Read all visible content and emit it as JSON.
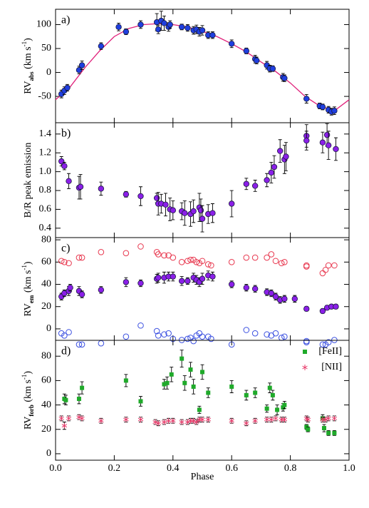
{
  "chart_data": [
    {
      "type": "scatter",
      "panel_label": "a)",
      "ylabel": [
        "RV",
        "abs",
        " (km s",
        "-1",
        ")"
      ],
      "xlim": [
        0,
        1
      ],
      "ylim": [
        -105,
        132
      ],
      "yticks": [
        -50,
        0,
        50,
        100
      ],
      "series": [
        {
          "marker": "line",
          "color": "#e0207a",
          "x": [
            0,
            0.05,
            0.1,
            0.15,
            0.2,
            0.25,
            0.3,
            0.35,
            0.4,
            0.45,
            0.5,
            0.55,
            0.6,
            0.65,
            0.7,
            0.75,
            0.8,
            0.85,
            0.9,
            0.95,
            1
          ],
          "values": [
            -57,
            -30,
            10,
            45,
            75,
            92,
            100,
            102,
            100,
            95,
            86,
            75,
            60,
            43,
            22,
            2,
            -22,
            -50,
            -70,
            -80,
            -57
          ]
        },
        {
          "marker": "filled-circle",
          "color": "#1f3fe0",
          "x": [
            0.02,
            0.03,
            0.04,
            0.08,
            0.09,
            0.155,
            0.215,
            0.24,
            0.29,
            0.345,
            0.35,
            0.36,
            0.37,
            0.385,
            0.39,
            0.43,
            0.45,
            0.47,
            0.48,
            0.49,
            0.5,
            0.52,
            0.535,
            0.6,
            0.65,
            0.68,
            0.685,
            0.72,
            0.73,
            0.74,
            0.775,
            0.78,
            0.855,
            0.9,
            0.91,
            0.93,
            0.94,
            0.95
          ],
          "values": [
            -45,
            -38,
            -32,
            5,
            15,
            55,
            95,
            85,
            100,
            105,
            90,
            108,
            103,
            95,
            100,
            95,
            93,
            88,
            90,
            85,
            88,
            78,
            78,
            60,
            45,
            28,
            25,
            15,
            8,
            8,
            -10,
            -12,
            -55,
            -70,
            -72,
            -78,
            -82,
            -80
          ],
          "errors": [
            8,
            8,
            7,
            8,
            9,
            7,
            8,
            6,
            8,
            18,
            9,
            20,
            15,
            9,
            8,
            6,
            7,
            8,
            9,
            9,
            10,
            7,
            7,
            8,
            6,
            8,
            7,
            8,
            7,
            6,
            8,
            7,
            9,
            6,
            6,
            7,
            7,
            8
          ]
        }
      ]
    },
    {
      "type": "scatter",
      "panel_label": "b)",
      "ylabel": "B/R peak emission",
      "xlim": [
        0,
        1
      ],
      "ylim": [
        0.3,
        1.52
      ],
      "yticks": [
        0.4,
        0.6,
        0.8,
        {
          "value": 1,
          "label": "1.0"
        },
        1.2,
        1.4
      ],
      "series": [
        {
          "marker": "filled-circle",
          "color": "#8b1fe8",
          "x": [
            0.02,
            0.03,
            0.045,
            0.08,
            0.085,
            0.155,
            0.24,
            0.29,
            0.345,
            0.35,
            0.36,
            0.375,
            0.39,
            0.4,
            0.43,
            0.44,
            0.46,
            0.47,
            0.49,
            0.495,
            0.5,
            0.52,
            0.535,
            0.6,
            0.65,
            0.68,
            0.72,
            0.735,
            0.745,
            0.765,
            0.78,
            0.785,
            0.855,
            0.855,
            0.91,
            0.925,
            0.93,
            0.955
          ],
          "values": [
            1.11,
            1.06,
            0.9,
            0.83,
            0.84,
            0.82,
            0.76,
            0.74,
            0.72,
            0.66,
            0.66,
            0.65,
            0.6,
            0.59,
            0.58,
            0.56,
            0.55,
            0.58,
            0.62,
            0.59,
            0.5,
            0.55,
            0.56,
            0.66,
            0.87,
            0.85,
            0.91,
            0.99,
            1.05,
            1.22,
            1.13,
            1.16,
            1.38,
            1.33,
            1.31,
            1.39,
            1.28,
            1.24
          ],
          "errors": [
            0.05,
            0.04,
            0.08,
            0.12,
            0.13,
            0.07,
            0.03,
            0.1,
            0.05,
            0.12,
            0.1,
            0.12,
            0.12,
            0.1,
            0.09,
            0.13,
            0.13,
            0.12,
            0.15,
            0.12,
            0.14,
            0.1,
            0.1,
            0.14,
            0.06,
            0.06,
            0.07,
            0.11,
            0.12,
            0.12,
            0.15,
            0.15,
            0.12,
            0.1,
            0.11,
            0.12,
            0.15,
            0.12
          ]
        }
      ]
    },
    {
      "type": "scatter",
      "panel_label": "c)",
      "ylabel": [
        "RV",
        "em",
        " (km s",
        "-1",
        ")"
      ],
      "xlim": [
        0,
        1
      ],
      "ylim": [
        -10.3,
        82
      ],
      "yticks": [
        0,
        20,
        40,
        60,
        80
      ],
      "series": [
        {
          "marker": "open-circle",
          "color": "#e8384f",
          "x": [
            0.02,
            0.03,
            0.045,
            0.08,
            0.09,
            0.155,
            0.24,
            0.29,
            0.345,
            0.35,
            0.37,
            0.385,
            0.4,
            0.43,
            0.45,
            0.46,
            0.47,
            0.48,
            0.49,
            0.5,
            0.52,
            0.53,
            0.6,
            0.65,
            0.68,
            0.72,
            0.735,
            0.75,
            0.77,
            0.78,
            0.855,
            0.855,
            0.91,
            0.92,
            0.93,
            0.95
          ],
          "values": [
            61,
            60,
            59,
            64,
            64,
            69,
            68,
            74,
            69,
            67,
            66,
            66,
            64,
            60,
            61,
            62,
            62,
            60,
            59,
            61,
            58,
            57,
            60,
            64,
            64,
            64,
            67,
            61,
            59,
            60,
            57,
            56,
            50,
            53,
            57,
            57
          ]
        },
        {
          "marker": "open-circle",
          "color": "#3a4fe0",
          "x": [
            0.02,
            0.03,
            0.045,
            0.08,
            0.09,
            0.155,
            0.24,
            0.29,
            0.345,
            0.35,
            0.37,
            0.385,
            0.4,
            0.43,
            0.45,
            0.46,
            0.47,
            0.48,
            0.49,
            0.5,
            0.52,
            0.53,
            0.6,
            0.65,
            0.68,
            0.72,
            0.735,
            0.75,
            0.77,
            0.78,
            0.855,
            0.855,
            0.91,
            0.92,
            0.93,
            0.95
          ],
          "values": [
            -4,
            -6,
            -3,
            -14,
            -14,
            -13,
            -7,
            3,
            -2,
            -6,
            -5,
            -4,
            -9,
            -10,
            -9,
            -8,
            -11,
            -6,
            -4,
            -7,
            -7,
            -9,
            -14,
            -1,
            -4,
            -5,
            -6,
            -4,
            -8,
            -7,
            -11,
            -12,
            -14,
            -14,
            -12,
            -10
          ]
        },
        {
          "marker": "filled-circle",
          "color": "#8b1fe8",
          "x": [
            0.02,
            0.03,
            0.045,
            0.05,
            0.08,
            0.09,
            0.155,
            0.24,
            0.29,
            0.345,
            0.35,
            0.37,
            0.385,
            0.4,
            0.43,
            0.45,
            0.47,
            0.48,
            0.49,
            0.5,
            0.52,
            0.535,
            0.6,
            0.65,
            0.68,
            0.72,
            0.735,
            0.75,
            0.765,
            0.78,
            0.815,
            0.855,
            0.91,
            0.925,
            0.94,
            0.955
          ],
          "values": [
            29,
            32,
            34,
            37,
            34,
            31,
            35,
            42,
            41,
            45,
            46,
            46,
            47,
            47,
            43,
            43,
            46,
            44,
            42,
            45,
            48,
            47,
            40,
            37,
            36,
            33,
            32,
            29,
            26,
            27,
            27,
            18,
            16,
            19,
            20,
            20
          ],
          "errors": [
            3,
            3,
            4,
            3,
            4,
            3,
            3,
            4,
            3,
            4,
            4,
            5,
            4,
            4,
            4,
            3,
            4,
            4,
            4,
            5,
            4,
            4,
            3,
            3,
            3,
            3,
            3,
            3,
            3,
            3,
            3,
            2,
            2,
            2,
            2,
            2
          ]
        }
      ]
    },
    {
      "type": "scatter",
      "panel_label": "d)",
      "ylabel": [
        "RV",
        "forb",
        " (km s",
        "-1",
        ")"
      ],
      "xlabel": "Phase",
      "xlim": [
        0,
        1
      ],
      "ylim": [
        -5.3,
        93
      ],
      "yticks": [
        0,
        20,
        40,
        60,
        80
      ],
      "xticks": [
        {
          "value": 0,
          "label": "0.0"
        },
        0.2,
        0.4,
        0.6,
        0.8,
        {
          "value": 1,
          "label": "1.0"
        }
      ],
      "legend": "upper right",
      "series": [
        {
          "name": "[FeII]",
          "marker": "square",
          "color": "#1faa2a",
          "x": [
            0.03,
            0.035,
            0.08,
            0.09,
            0.24,
            0.29,
            0.37,
            0.38,
            0.395,
            0.43,
            0.44,
            0.46,
            0.47,
            0.49,
            0.5,
            0.52,
            0.6,
            0.65,
            0.68,
            0.72,
            0.73,
            0.74,
            0.755,
            0.775,
            0.78,
            0.855,
            0.86,
            0.91,
            0.915,
            0.93,
            0.95
          ],
          "values": [
            45,
            44,
            45,
            54,
            60,
            43,
            57,
            58,
            65,
            78,
            58,
            69,
            55,
            36,
            67,
            50,
            55,
            48,
            50,
            37,
            54,
            48,
            36,
            38,
            40,
            22,
            20,
            29,
            21,
            17,
            17
          ],
          "errors": [
            4,
            4,
            4,
            5,
            5,
            4,
            4,
            5,
            6,
            7,
            6,
            6,
            6,
            3,
            6,
            4,
            5,
            4,
            4,
            3,
            4,
            4,
            4,
            3,
            3,
            2,
            2,
            3,
            3,
            2,
            2
          ]
        },
        {
          "name": "[NII]",
          "marker": "asterisk",
          "color": "#e83a6a",
          "x": [
            0.02,
            0.03,
            0.045,
            0.08,
            0.09,
            0.155,
            0.24,
            0.29,
            0.34,
            0.35,
            0.37,
            0.385,
            0.4,
            0.43,
            0.45,
            0.46,
            0.47,
            0.48,
            0.49,
            0.5,
            0.52,
            0.6,
            0.65,
            0.68,
            0.72,
            0.735,
            0.75,
            0.77,
            0.78,
            0.855,
            0.86,
            0.91,
            0.92,
            0.93,
            0.95
          ],
          "values": [
            29,
            23,
            29,
            30,
            29,
            27,
            28,
            28,
            26,
            25,
            26,
            27,
            27,
            26,
            26,
            27,
            27,
            26,
            28,
            28,
            28,
            27,
            25,
            27,
            28,
            28,
            29,
            28,
            28,
            29,
            28,
            28,
            28,
            29,
            29
          ],
          "errors": [
            2,
            3,
            2,
            2,
            2,
            2,
            2,
            2,
            2,
            2,
            2,
            2,
            2,
            2,
            2,
            2,
            2,
            2,
            2,
            2,
            2,
            2,
            2,
            2,
            2,
            2,
            2,
            2,
            2,
            2,
            2,
            2,
            2,
            2,
            2
          ]
        }
      ]
    }
  ]
}
